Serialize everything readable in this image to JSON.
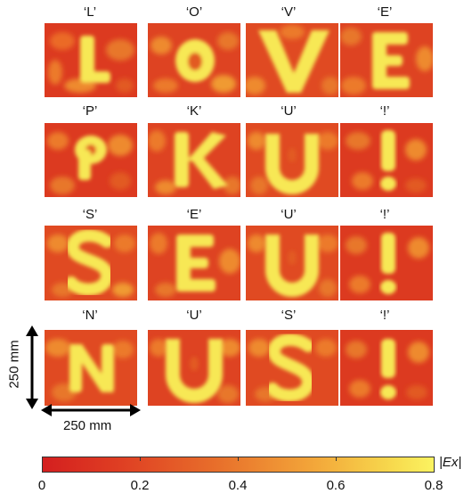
{
  "rows": [
    {
      "labels": [
        "‘L’",
        "‘O’",
        "‘V’",
        "‘E’"
      ]
    },
    {
      "labels": [
        "‘P’",
        "‘K’",
        "‘U’",
        "‘!’"
      ]
    },
    {
      "labels": [
        "‘S’",
        "‘E’",
        "‘U’",
        "‘!’"
      ]
    },
    {
      "labels": [
        "‘N’",
        "‘U’",
        "‘S’",
        "‘!’"
      ]
    }
  ],
  "dims": {
    "vertical": "250 mm",
    "horizontal": "250 mm"
  },
  "colorbar": {
    "label": "|Ex|",
    "ticks": [
      "0",
      "0.2",
      "0.4",
      "0.6",
      "0.8"
    ],
    "range": [
      0,
      0.8
    ],
    "colors": [
      "#d41f1f",
      "#e8702b",
      "#fbf361"
    ]
  }
}
